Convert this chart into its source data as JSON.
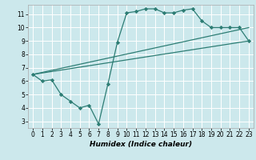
{
  "title": "",
  "xlabel": "Humidex (Indice chaleur)",
  "bg_color": "#cce8ec",
  "grid_color": "#ffffff",
  "line_color": "#2d7d74",
  "xlim": [
    -0.5,
    23.5
  ],
  "ylim": [
    2.5,
    11.7
  ],
  "xticks": [
    0,
    1,
    2,
    3,
    4,
    5,
    6,
    7,
    8,
    9,
    10,
    11,
    12,
    13,
    14,
    15,
    16,
    17,
    18,
    19,
    20,
    21,
    22,
    23
  ],
  "yticks": [
    3,
    4,
    5,
    6,
    7,
    8,
    9,
    10,
    11
  ],
  "line1_x": [
    0,
    1,
    2,
    3,
    4,
    5,
    6,
    7,
    8,
    9,
    10,
    11,
    12,
    13,
    14,
    15,
    16,
    17,
    18,
    19,
    20,
    21,
    22,
    23
  ],
  "line1_y": [
    6.5,
    6.0,
    6.1,
    5.0,
    4.5,
    4.0,
    4.2,
    2.8,
    5.8,
    8.9,
    11.1,
    11.2,
    11.4,
    11.4,
    11.1,
    11.1,
    11.3,
    11.4,
    10.5,
    10.0,
    10.0,
    10.0,
    10.0,
    9.0
  ],
  "line2_x": [
    0,
    23
  ],
  "line2_y": [
    6.5,
    9.0
  ],
  "line3_x": [
    0,
    23
  ],
  "line3_y": [
    6.5,
    10.0
  ],
  "marker": "D",
  "marker_size": 2.2,
  "linewidth": 0.9,
  "xlabel_fontsize": 6.5,
  "tick_fontsize": 5.5
}
